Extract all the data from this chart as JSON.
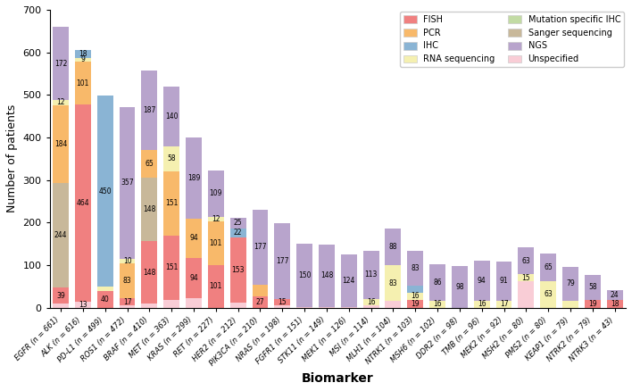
{
  "biomarkers": [
    "EGFR (n = 661)",
    "ALK (n = 616)",
    "PD-L1 (n = 499)",
    "ROS1 (n = 472)",
    "BRAF (n = 410)",
    "MET (n = 363)",
    "KRAS (n = 299)",
    "RET (n = 227)",
    "HER2 (n = 212)",
    "PIK3CA (n = 210)",
    "NRAS (n = 198)",
    "FGFR1 (n = 151)",
    "STK11 (n = 149)",
    "MEK1 (n = 126)",
    "MSI (n = 114)",
    "MLH1 (n = 104)",
    "NTRK1 (n = 103)",
    "MSH6 (n = 102)",
    "DDR2 (n = 98)",
    "TMB (n = 96)",
    "MEK2 (n = 92)",
    "MSH2 (n = 80)",
    "PMS2 (n = 80)",
    "KEAP1 (n = 79)",
    "NTRK2 (n = 79)",
    "NTRK3 (n = 43)"
  ],
  "stack_order": [
    "Unspecified",
    "RNA sequencing",
    "PCR",
    "IHC",
    "Sanger sequencing",
    "FISH",
    "Mutation specific IHC",
    "NGS"
  ],
  "segments": {
    "FISH": [
      39,
      464,
      40,
      17,
      148,
      151,
      94,
      101,
      153,
      27,
      15,
      0,
      0,
      0,
      0,
      0,
      19,
      0,
      0,
      0,
      0,
      0,
      0,
      0,
      19,
      18
    ],
    "IHC": [
      0,
      18,
      450,
      0,
      0,
      0,
      0,
      0,
      22,
      0,
      0,
      0,
      0,
      0,
      0,
      0,
      16,
      0,
      0,
      0,
      0,
      0,
      0,
      0,
      0,
      0
    ],
    "Mutation specific IHC": [
      0,
      0,
      0,
      0,
      0,
      0,
      0,
      0,
      0,
      0,
      0,
      0,
      0,
      0,
      0,
      0,
      0,
      0,
      0,
      0,
      0,
      0,
      0,
      0,
      0,
      0
    ],
    "NGS": [
      172,
      0,
      0,
      357,
      187,
      140,
      189,
      109,
      25,
      177,
      177,
      150,
      148,
      124,
      113,
      88,
      83,
      86,
      98,
      94,
      91,
      63,
      65,
      79,
      58,
      24
    ],
    "PCR": [
      184,
      101,
      0,
      83,
      65,
      151,
      94,
      101,
      0,
      27,
      0,
      0,
      0,
      0,
      0,
      0,
      0,
      0,
      0,
      0,
      0,
      0,
      0,
      0,
      0,
      0
    ],
    "RNA sequencing": [
      12,
      9,
      9,
      10,
      0,
      58,
      0,
      12,
      0,
      0,
      0,
      0,
      0,
      0,
      16,
      83,
      16,
      16,
      0,
      16,
      17,
      15,
      63,
      17,
      0,
      0
    ],
    "Sanger sequencing": [
      244,
      0,
      0,
      0,
      148,
      0,
      0,
      0,
      0,
      0,
      0,
      0,
      0,
      0,
      0,
      0,
      0,
      0,
      0,
      0,
      0,
      0,
      0,
      0,
      0,
      0
    ],
    "Unspecified": [
      9,
      13,
      0,
      5,
      9,
      19,
      22,
      0,
      12,
      0,
      6,
      1,
      1,
      2,
      5,
      16,
      0,
      0,
      0,
      0,
      0,
      63,
      0,
      0,
      0,
      0
    ]
  },
  "colors": {
    "FISH": "#f08080",
    "IHC": "#8ab4d4",
    "Mutation specific IHC": "#c2dba4",
    "NGS": "#b8a4cc",
    "PCR": "#f8b96a",
    "RNA sequencing": "#f5f0b0",
    "Sanger sequencing": "#c8b89a",
    "Unspecified": "#f9cdd6"
  },
  "ylim": [
    0,
    700
  ],
  "yticks": [
    0,
    100,
    200,
    300,
    400,
    500,
    600,
    700
  ],
  "ylabel": "Number of patients",
  "xlabel": "Biomarker"
}
